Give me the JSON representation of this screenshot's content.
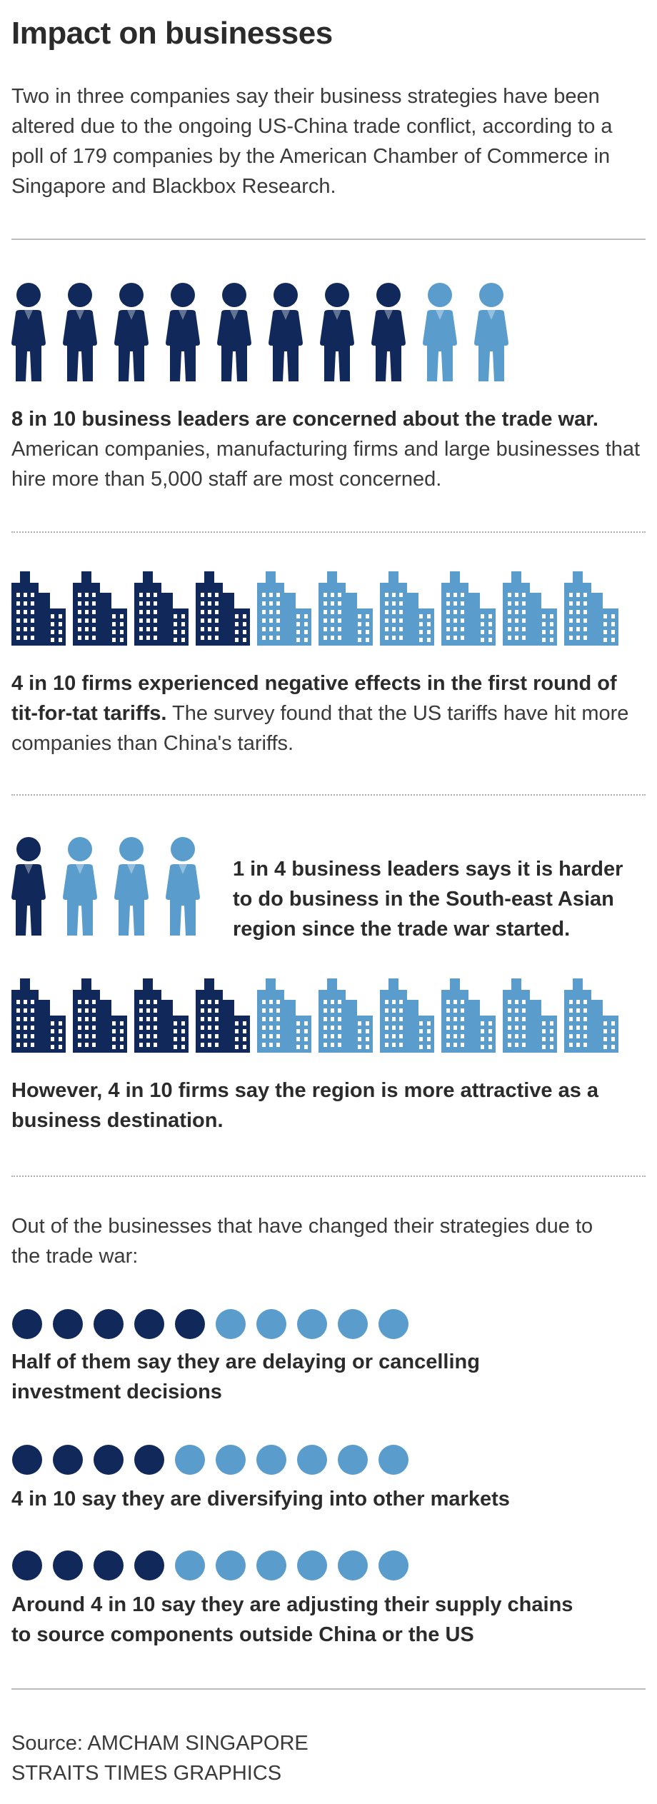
{
  "header": {
    "title": "Impact on businesses",
    "intro": "Two in three companies say their business strategies have been altered due to the ongoing US-China trade conflict, according to a poll of 179 companies by the American Chamber of Commerce in Singapore and Blackbox Research."
  },
  "colors": {
    "dark": "#10295a",
    "light": "#5a9ccb",
    "rule": "#bdbdbd"
  },
  "section1": {
    "icon": "person-icon",
    "dark_count": 8,
    "total": 10,
    "lead": "8 in 10 business leaders are concerned about the trade war.",
    "body": "American companies, manufacturing firms and large businesses that hire more than 5,000 staff are most concerned."
  },
  "section2": {
    "icon": "building-icon",
    "dark_count": 4,
    "total": 10,
    "lead": "4 in 10 firms experienced negative effects in the first round of tit-for-tat tariffs.",
    "body": "The survey found that the US tariffs have hit more companies than China's tariffs."
  },
  "section3": {
    "people_dark": 1,
    "people_total": 4,
    "people_text": "1 in 4 business leaders says it is harder to do business in the South-east Asian region since the trade war started.",
    "buildings_dark": 4,
    "buildings_total": 10,
    "buildings_text": "However, 4 in 10 firms say the region is more attractive as a business destination."
  },
  "section4": {
    "intro": "Out of the businesses that have changed their strategies due to the trade war:",
    "items": [
      {
        "dark": 5,
        "total": 10,
        "text": "Half of them say they are delaying or cancelling investment decisions"
      },
      {
        "dark": 4,
        "total": 10,
        "text": "4 in 10 say they are diversifying into other markets"
      },
      {
        "dark": 4,
        "total": 10,
        "text": "Around 4 in 10 say they are adjusting their supply chains to source components outside China or the US"
      }
    ]
  },
  "footer": {
    "source": "Source: AMCHAM SINGAPORE",
    "credit": "STRAITS TIMES GRAPHICS"
  }
}
